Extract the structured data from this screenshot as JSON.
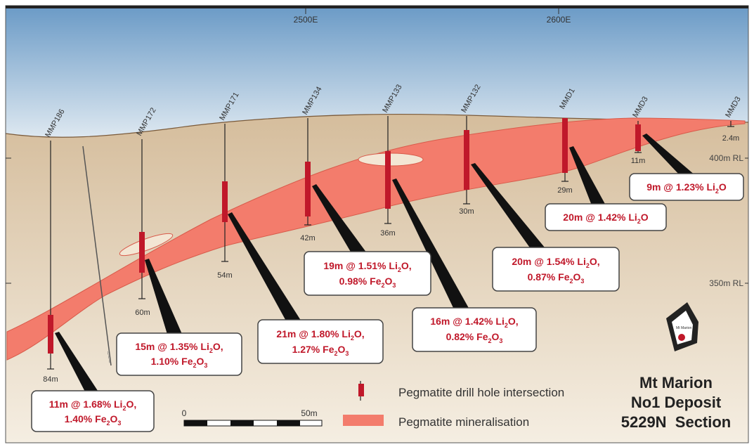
{
  "grid": {
    "easting_labels": [
      "2500E",
      "2600E"
    ],
    "rl_labels": [
      "400m RL",
      "350m RL"
    ]
  },
  "drill_holes": [
    {
      "id": "MMP186",
      "depth": "84m"
    },
    {
      "id": "MMP172",
      "depth": "60m"
    },
    {
      "id": "MMP171",
      "depth": "54m"
    },
    {
      "id": "MMP134",
      "depth": "42m"
    },
    {
      "id": "MMP133",
      "depth": "36m"
    },
    {
      "id": "MMP132",
      "depth": "30m"
    },
    {
      "id": "MMD1",
      "depth": "29m"
    },
    {
      "id": "MMD3",
      "depth": "11m"
    },
    {
      "id": "MMD3",
      "depth": "2.4m"
    }
  ],
  "intersections": [
    {
      "line1": "11m @ 1.68% Li",
      "line1_ox": "O,",
      "line2": "1.40% Fe",
      "line2_ox": "O"
    },
    {
      "line1": "15m @ 1.35% Li",
      "line1_ox": "O,",
      "line2": "1.10% Fe",
      "line2_ox": "O"
    },
    {
      "line1": "21m @ 1.80% Li",
      "line1_ox": "O,",
      "line2": "1.27% Fe",
      "line2_ox": "O"
    },
    {
      "line1": "19m @ 1.51% Li",
      "line1_ox": "O,",
      "line2": "0.98% Fe",
      "line2_ox": "O"
    },
    {
      "line1": "16m @ 1.42% Li",
      "line1_ox": "O,",
      "line2": "0.82% Fe",
      "line2_ox": "O"
    },
    {
      "line1": "20m @ 1.54% Li",
      "line1_ox": "O,",
      "line2": "0.87% Fe",
      "line2_ox": "O"
    },
    {
      "line1": "20m @ 1.42% Li",
      "line1_ox": "O",
      "line2": "",
      "line2_ox": ""
    },
    {
      "line1": "9m @ 1.23% Li",
      "line1_ox": "O",
      "line2": "",
      "line2_ox": ""
    }
  ],
  "legend": {
    "drill_intersection": "Pegmatite drill hole intersection",
    "mineralisation": "Pegmatite mineralisation"
  },
  "scale_bar": {
    "start": "0",
    "end": "50m"
  },
  "title": {
    "line1": "Mt Marion",
    "line2": "No1 Deposit",
    "line3": "5229N  Section"
  },
  "location_icon_label": "Mt Marion",
  "colors": {
    "sky": "#7ea9cd",
    "ground": "#d8c2a4",
    "ore": "#f37c6c",
    "intersection": "#c0182a",
    "callout_text": "#c0182a"
  }
}
